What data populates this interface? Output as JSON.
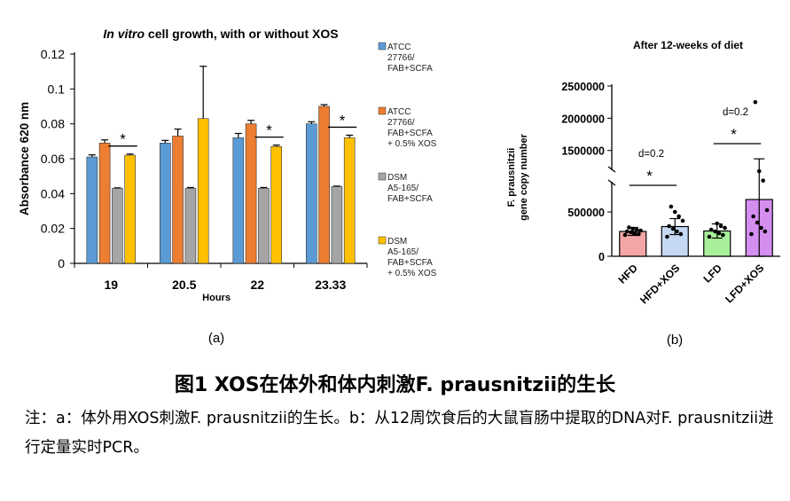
{
  "chart_data": [
    {
      "type": "bar",
      "panel_label": "(a)",
      "title_italic": "In vitro",
      "title_rest": " cell growth, with or without XOS",
      "xlabel": "Hours",
      "ylabel": "Absorbance 620 nm",
      "ylim": [
        0,
        0.12
      ],
      "yticks": [
        "0",
        "0.02",
        "0.04",
        "0.06",
        "0.08",
        "0.1",
        "0.12"
      ],
      "categories": [
        "19",
        "20.5",
        "22",
        "23.33"
      ],
      "legend_position": "right",
      "series": [
        {
          "legend": [
            "ATCC",
            "27766/",
            "FAB+SCFA"
          ],
          "color": "#5b9bd5",
          "values": [
            0.061,
            0.069,
            0.072,
            0.08
          ],
          "errors": [
            0.0012,
            0.0015,
            0.0025,
            0.0012
          ]
        },
        {
          "legend": [
            "ATCC",
            "27766/",
            "FAB+SCFA",
            "+ 0.5% XOS"
          ],
          "color": "#ed7d31",
          "values": [
            0.069,
            0.073,
            0.08,
            0.09
          ],
          "errors": [
            0.0018,
            0.004,
            0.002,
            0.001
          ]
        },
        {
          "legend": [
            "DSM",
            "A5-165/",
            "FAB+SCFA"
          ],
          "color": "#a5a5a5",
          "values": [
            0.043,
            0.043,
            0.043,
            0.044
          ],
          "errors": [
            0.0003,
            0.0005,
            0.0005,
            0.0003
          ]
        },
        {
          "legend": [
            "DSM",
            "A5-165/",
            "FAB+SCFA",
            "+ 0.5% XOS"
          ],
          "color": "#ffc000",
          "values": [
            0.062,
            0.083,
            0.067,
            0.072
          ],
          "errors": [
            0.0007,
            0.03,
            0.0008,
            0.0015
          ]
        }
      ],
      "annotations": [
        {
          "text": "*",
          "category_index": 0
        },
        {
          "text": "*",
          "category_index": 2
        },
        {
          "text": "*",
          "category_index": 3
        }
      ]
    },
    {
      "type": "bar",
      "panel_label": "(b)",
      "title": "After 12-weeks of diet",
      "ylabel": [
        "F. prausnitzii",
        "gene copy number"
      ],
      "yticks_lower": [
        "0",
        "500000"
      ],
      "yticks_upper": [
        "1500000",
        "2000000",
        "2500000"
      ],
      "axis_break": [
        800000,
        1400000
      ],
      "categories": [
        "HFD",
        "HFD+XOS",
        "LFD",
        "LFD+XOS"
      ],
      "colors": [
        "#f4a6a6",
        "#c5d8f4",
        "#a9ef9b",
        "#d48ef0"
      ],
      "values": [
        280000,
        335000,
        285000,
        640000
      ],
      "errors": [
        45000,
        90000,
        80000,
        720000
      ],
      "points": [
        [
          240000,
          250000,
          260000,
          270000,
          280000,
          290000,
          300000,
          310000,
          325000
        ],
        [
          220000,
          250000,
          280000,
          310000,
          340000,
          400000,
          450000,
          500000,
          560000
        ],
        [
          220000,
          240000,
          260000,
          280000,
          300000,
          320000,
          340000,
          370000
        ],
        [
          250000,
          280000,
          320000,
          380000,
          450000,
          520000,
          900000,
          1100000,
          2250000
        ]
      ],
      "annotations": [
        {
          "effect": "d=0.2",
          "star": "*",
          "between": [
            0,
            1
          ]
        },
        {
          "effect": "d=0.2",
          "star": "*",
          "between": [
            2,
            3
          ]
        }
      ]
    }
  ],
  "caption": {
    "title": "图1 XOS在体外和体内刺激F. prausnitzii的生长",
    "note": "注：a：体外用XOS刺激F. prausnitzii的生长。b：从12周饮食后的大鼠盲肠中提取的DNA对F. prausnitzii进行定量实时PCR。"
  }
}
